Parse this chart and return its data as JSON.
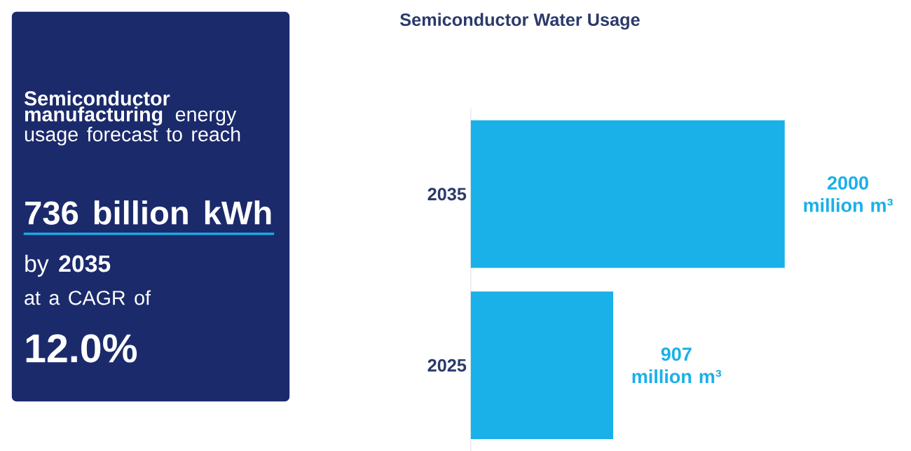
{
  "chart_data": [
    {
      "type": "other",
      "color": "#1b2a6b",
      "annotations": [
        "**Semiconductor manufacturing** energy usage forecast to reach",
        "**736 billion kWh**",
        "by **2035**",
        "at a CAGR of",
        "**12.0%**"
      ]
    },
    {
      "type": "bar",
      "orientation": "horizontal",
      "title": "Semiconductor Water Usage",
      "categories": [
        "2035",
        "2025"
      ],
      "values": [
        2000,
        907
      ],
      "color": "#1ab0e8",
      "value_labels": [
        "2000 million m³",
        "907 million m³"
      ]
    }
  ]
}
